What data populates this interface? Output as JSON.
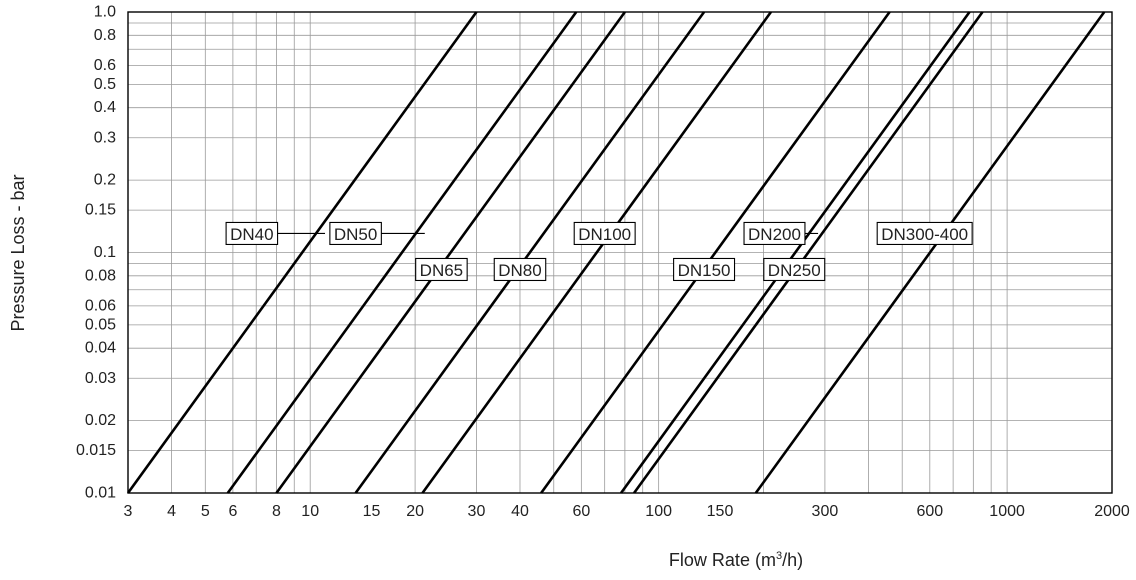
{
  "chart_data": {
    "type": "line",
    "xscale": "log",
    "yscale": "log",
    "title": "",
    "xlabel_prefix": "Flow Rate (m",
    "xlabel_sup": "3",
    "xlabel_suffix": "/h)",
    "ylabel": "Pressure Loss - bar",
    "xlim": [
      3,
      2000
    ],
    "ylim": [
      0.01,
      1.0
    ],
    "grid": true,
    "x_ticks": [
      3,
      4,
      5,
      6,
      8,
      10,
      15,
      20,
      30,
      40,
      60,
      100,
      150,
      300,
      600,
      1000,
      2000
    ],
    "x_tick_labels": [
      "3",
      "4",
      "5",
      "6",
      "8",
      "10",
      "15",
      "20",
      "30",
      "40",
      "60",
      "100",
      "150",
      "300",
      "600",
      "1000",
      "2000"
    ],
    "y_ticks": [
      0.01,
      0.015,
      0.02,
      0.03,
      0.04,
      0.05,
      0.06,
      0.08,
      0.1,
      0.15,
      0.2,
      0.3,
      0.4,
      0.5,
      0.6,
      0.8,
      1.0
    ],
    "y_tick_labels": [
      "0.01",
      "0.015",
      "0.02",
      "0.03",
      "0.04",
      "0.05",
      "0.06",
      "0.08",
      "0.1",
      "0.15",
      "0.2",
      "0.3",
      "0.4",
      "0.5",
      "0.6",
      "0.8",
      "1.0"
    ],
    "series": [
      {
        "name": "DN40",
        "x": [
          3,
          30
        ],
        "y": [
          0.01,
          1.0
        ],
        "label_at": [
          6.8,
          0.12
        ]
      },
      {
        "name": "DN50",
        "x": [
          5.8,
          58
        ],
        "y": [
          0.01,
          1.0
        ],
        "label_at": [
          13.5,
          0.12
        ]
      },
      {
        "name": "DN65",
        "x": [
          8,
          80
        ],
        "y": [
          0.01,
          1.0
        ],
        "label_at": [
          23.8,
          0.085
        ]
      },
      {
        "name": "DN80",
        "x": [
          13.5,
          135
        ],
        "y": [
          0.01,
          1.0
        ],
        "label_at": [
          40,
          0.085
        ]
      },
      {
        "name": "DN100",
        "x": [
          21,
          210
        ],
        "y": [
          0.01,
          1.0
        ],
        "label_at": [
          70,
          0.12
        ]
      },
      {
        "name": "DN150",
        "x": [
          46,
          460
        ],
        "y": [
          0.01,
          1.0
        ],
        "label_at": [
          135,
          0.085
        ]
      },
      {
        "name": "DN200",
        "x": [
          78,
          780
        ],
        "y": [
          0.01,
          1.0
        ],
        "label_at": [
          215,
          0.12
        ]
      },
      {
        "name": "DN250",
        "x": [
          85,
          850
        ],
        "y": [
          0.01,
          1.0
        ],
        "label_at": [
          245,
          0.085
        ]
      },
      {
        "name": "DN300-400",
        "x": [
          190,
          1900
        ],
        "y": [
          0.01,
          1.0
        ],
        "label_at": [
          580,
          0.12
        ]
      }
    ]
  }
}
